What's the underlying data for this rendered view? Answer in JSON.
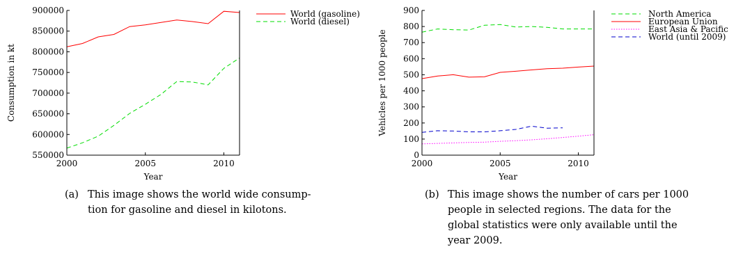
{
  "charts": [
    {
      "type": "line",
      "title": "",
      "xlabel": "Year",
      "ylabel": "Consumption in kt",
      "xlim": [
        2000,
        2011
      ],
      "ylim": [
        550000,
        900000
      ],
      "xticks": [
        2000,
        2005,
        2010
      ],
      "yticks": [
        550000,
        600000,
        650000,
        700000,
        750000,
        800000,
        850000,
        900000
      ],
      "grid": false,
      "legend_position": "top-right outside",
      "series": [
        {
          "name": "World (gasoline)",
          "color": "#ff0000",
          "dash": "solid",
          "x": [
            2000,
            2001,
            2002,
            2003,
            2004,
            2005,
            2006,
            2007,
            2008,
            2009,
            2010,
            2011
          ],
          "y": [
            812000,
            820000,
            836000,
            842000,
            861000,
            865000,
            871000,
            877000,
            873000,
            868000,
            898000,
            895000
          ]
        },
        {
          "name": "World (diesel)",
          "color": "#00dd00",
          "dash": "dashed",
          "x": [
            2000,
            2001,
            2002,
            2003,
            2004,
            2005,
            2006,
            2007,
            2008,
            2009,
            2010,
            2011
          ],
          "y": [
            567000,
            580000,
            596000,
            622000,
            651000,
            673000,
            697000,
            728000,
            727000,
            720000,
            760000,
            785000
          ]
        }
      ],
      "caption": {
        "label": "(a)",
        "lines": [
          "This image shows the world wide consump-",
          "tion for gasoline and diesel in kilotons."
        ]
      }
    },
    {
      "type": "line",
      "title": "",
      "xlabel": "Year",
      "ylabel": "Vehicles per 1000 people",
      "xlim": [
        2000,
        2011
      ],
      "ylim": [
        0,
        900
      ],
      "xticks": [
        2000,
        2005,
        2010
      ],
      "yticks": [
        0,
        100,
        200,
        300,
        400,
        500,
        600,
        700,
        800,
        900
      ],
      "grid": false,
      "legend_position": "top-right outside",
      "series": [
        {
          "name": "North America",
          "color": "#00dd00",
          "dash": "dashed",
          "x": [
            2000,
            2001,
            2002,
            2003,
            2004,
            2005,
            2006,
            2007,
            2008,
            2009,
            2010,
            2011
          ],
          "y": [
            765,
            785,
            780,
            778,
            808,
            812,
            797,
            800,
            795,
            785,
            785,
            785
          ]
        },
        {
          "name": "European Union",
          "color": "#ff0000",
          "dash": "solid",
          "x": [
            2000,
            2001,
            2002,
            2003,
            2004,
            2005,
            2006,
            2007,
            2008,
            2009,
            2010,
            2011
          ],
          "y": [
            476,
            492,
            500,
            485,
            487,
            515,
            522,
            530,
            538,
            541,
            548,
            554
          ]
        },
        {
          "name": "East Asia & Pacific",
          "color": "#ff00ff",
          "dash": "dotted",
          "x": [
            2000,
            2001,
            2002,
            2003,
            2004,
            2005,
            2006,
            2007,
            2008,
            2009,
            2010,
            2011
          ],
          "y": [
            70,
            73,
            76,
            79,
            81,
            86,
            90,
            95,
            102,
            110,
            118,
            127
          ]
        },
        {
          "name": "World (until 2009)",
          "color": "#0000cc",
          "dash": "dashed",
          "x": [
            2000,
            2001,
            2002,
            2003,
            2004,
            2005,
            2006,
            2007,
            2008,
            2009
          ],
          "y": [
            142,
            152,
            150,
            145,
            145,
            152,
            160,
            180,
            168,
            170
          ]
        }
      ],
      "caption": {
        "label": "(b)",
        "lines": [
          "This image shows the number of cars per 1000",
          "people in selected regions. The data for the",
          "global statistics were only available until the",
          "year 2009."
        ]
      }
    }
  ]
}
